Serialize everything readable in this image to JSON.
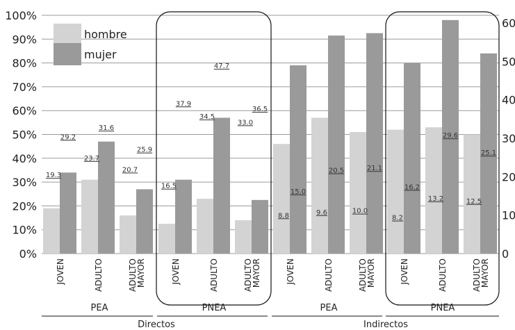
{
  "chart_data": {
    "type": "bar",
    "title": "",
    "xlabel": "",
    "ylabel": "",
    "left_axis": {
      "ticks": [
        "0%",
        "10%",
        "20%",
        "30%",
        "40%",
        "50%",
        "60%",
        "70%",
        "80%",
        "90%",
        "100%"
      ],
      "ylim": [
        0,
        100
      ]
    },
    "right_axis": {
      "ticks": [
        "0",
        "10",
        "20",
        "30",
        "40",
        "50",
        "60"
      ],
      "ylim": [
        0,
        60
      ]
    },
    "grid": true,
    "legend": {
      "position": "top-left"
    },
    "series": [
      {
        "name": "hombre",
        "color": "#d3d3d3"
      },
      {
        "name": "mujer",
        "color": "#9a9a9a"
      }
    ],
    "groups": [
      {
        "name": "Directos",
        "sub": "PEA",
        "boxed": false,
        "categories": [
          {
            "label": [
              "JOVEN"
            ],
            "hombre_pct": 19,
            "mujer_pct": 34,
            "hombre_label": "19.3",
            "mujer_label": "29.2"
          },
          {
            "label": [
              "ADULTO"
            ],
            "hombre_pct": 31,
            "mujer_pct": 47,
            "hombre_label": "23.7",
            "mujer_label": "31.6"
          },
          {
            "label": [
              "ADULTO",
              "MAYOR"
            ],
            "hombre_pct": 16,
            "mujer_pct": 27,
            "hombre_label": "20.7",
            "mujer_label": "25.9"
          }
        ]
      },
      {
        "name": "Directos",
        "sub": "PNEA",
        "boxed": true,
        "categories": [
          {
            "label": [
              "JOVEN"
            ],
            "hombre_pct": 12.5,
            "mujer_pct": 31,
            "hombre_label": "16.5",
            "mujer_label": "37.9"
          },
          {
            "label": [
              "ADULTO"
            ],
            "hombre_pct": 23,
            "mujer_pct": 57,
            "hombre_label": "34.5",
            "mujer_label": "47.7"
          },
          {
            "label": [
              "ADULTO",
              "MAYOR"
            ],
            "hombre_pct": 14,
            "mujer_pct": 22.5,
            "hombre_label": "33.0",
            "mujer_label": "36.5"
          }
        ]
      },
      {
        "name": "Indirectos",
        "sub": "PEA",
        "boxed": false,
        "categories": [
          {
            "label": [
              "JOVEN"
            ],
            "hombre_pct": 46,
            "mujer_pct": 79,
            "hombre_label": "8.8",
            "mujer_label": "15.0"
          },
          {
            "label": [
              "ADULTO"
            ],
            "hombre_pct": 57,
            "mujer_pct": 91.5,
            "hombre_label": "9.6",
            "mujer_label": "20.5"
          },
          {
            "label": [
              "ADULTO",
              "MAYOR"
            ],
            "hombre_pct": 51,
            "mujer_pct": 92.5,
            "hombre_label": "10.0",
            "mujer_label": "21.1"
          }
        ]
      },
      {
        "name": "Indirectos",
        "sub": "PNEA",
        "boxed": true,
        "categories": [
          {
            "label": [
              "JOVEN"
            ],
            "hombre_pct": 52,
            "mujer_pct": 80,
            "hombre_label": "8.2",
            "mujer_label": "16.2"
          },
          {
            "label": [
              "ADULTO"
            ],
            "hombre_pct": 53,
            "mujer_pct": 98,
            "hombre_label": "13.2",
            "mujer_label": "29.6"
          },
          {
            "label": [
              "ADULTO",
              "MAYOR"
            ],
            "hombre_pct": 50,
            "mujer_pct": 84,
            "hombre_label": "12.5",
            "mujer_label": "25.1"
          }
        ]
      }
    ]
  }
}
